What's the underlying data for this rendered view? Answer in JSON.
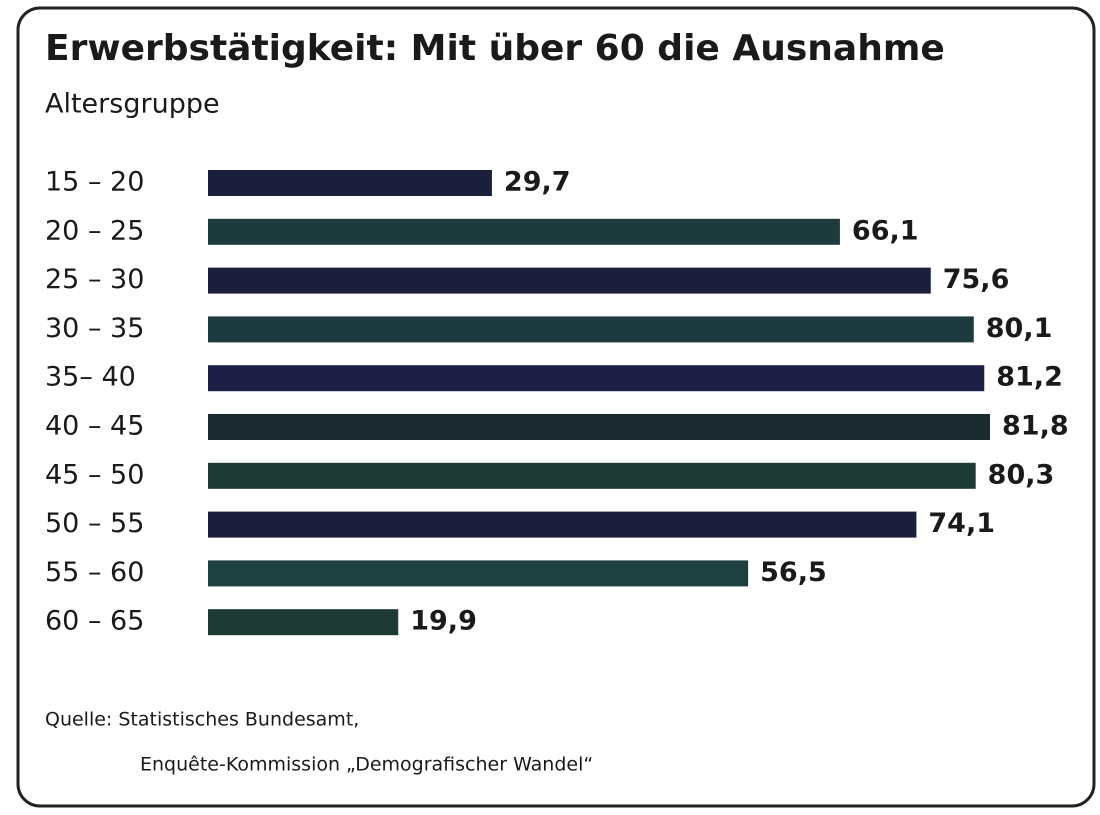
{
  "chart_data": {
    "type": "bar",
    "orientation": "horizontal",
    "title": "Erwerbstätigkeit: Mit über 60 die Ausnahme",
    "subtitle": "Altersgruppe",
    "categories": [
      "15 – 20",
      "20 – 25",
      "25 – 30",
      "30 – 35",
      "35– 40",
      "40 – 45",
      "45 – 50",
      "50 – 55",
      "55 – 60",
      "60 – 65"
    ],
    "values": [
      29.7,
      66.1,
      75.6,
      80.1,
      81.2,
      81.8,
      80.3,
      74.1,
      56.5,
      19.9
    ],
    "value_labels": [
      "29,7",
      "66,1",
      "75,6",
      "80,1",
      "81,2",
      "81,8",
      "80,3",
      "74,1",
      "56,5",
      "19,9"
    ],
    "colors": [
      "#1b1f3c",
      "#1d3b3a",
      "#1b1f3c",
      "#1d3b3f",
      "#1e1f44",
      "#1a2a2e",
      "#1d3a35",
      "#1b1f3c",
      "#1f4040",
      "#1d3a35"
    ],
    "source": [
      "Quelle: Statistisches Bundesamt,",
      "Enquête-Kommission „Demografischer Wandel“"
    ]
  }
}
